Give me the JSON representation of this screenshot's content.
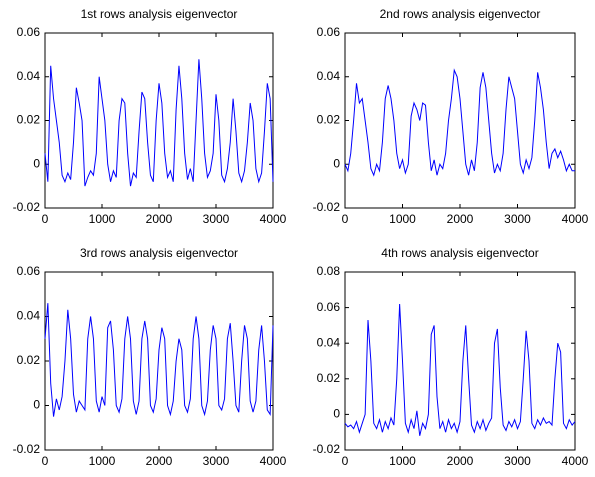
{
  "chart_data": [
    {
      "type": "line",
      "title": "1st rows analysis eigenvector",
      "color": "#0000ff",
      "x": [
        0,
        50,
        100,
        150,
        200,
        250,
        300,
        350,
        400,
        450,
        500,
        550,
        600,
        650,
        700,
        750,
        800,
        850,
        900,
        950,
        1000,
        1050,
        1100,
        1150,
        1200,
        1250,
        1300,
        1350,
        1400,
        1450,
        1500,
        1550,
        1600,
        1650,
        1700,
        1750,
        1800,
        1850,
        1900,
        1950,
        2000,
        2050,
        2100,
        2150,
        2200,
        2250,
        2300,
        2350,
        2400,
        2450,
        2500,
        2550,
        2600,
        2650,
        2700,
        2750,
        2800,
        2850,
        2900,
        2950,
        3000,
        3050,
        3100,
        3150,
        3200,
        3250,
        3300,
        3350,
        3400,
        3450,
        3500,
        3550,
        3600,
        3650,
        3700,
        3750,
        3800,
        3850,
        3900,
        3950,
        4000
      ],
      "values": [
        0.005,
        -0.008,
        0.045,
        0.03,
        0.02,
        0.01,
        -0.005,
        -0.008,
        -0.004,
        -0.007,
        0.01,
        0.035,
        0.028,
        0.02,
        -0.01,
        -0.006,
        -0.003,
        -0.005,
        0.005,
        0.04,
        0.03,
        0.02,
        0.0,
        -0.008,
        -0.003,
        -0.006,
        0.02,
        0.03,
        0.028,
        0.005,
        -0.01,
        -0.004,
        -0.006,
        0.015,
        0.033,
        0.03,
        0.01,
        -0.005,
        -0.008,
        0.02,
        0.037,
        0.028,
        0.005,
        -0.006,
        -0.003,
        -0.008,
        0.025,
        0.045,
        0.03,
        0.005,
        -0.007,
        -0.002,
        -0.008,
        0.02,
        0.048,
        0.03,
        0.005,
        -0.006,
        -0.003,
        0.005,
        0.032,
        0.02,
        -0.005,
        -0.008,
        -0.002,
        0.01,
        0.03,
        0.015,
        -0.004,
        -0.008,
        -0.003,
        0.01,
        0.028,
        0.02,
        -0.002,
        -0.008,
        -0.004,
        0.015,
        0.037,
        0.03,
        -0.008
      ],
      "xlim": [
        0,
        4000
      ],
      "xticks": [
        0,
        1000,
        2000,
        3000,
        4000
      ],
      "ylim": [
        -0.02,
        0.06
      ],
      "yticks": [
        -0.02,
        0,
        0.02,
        0.04,
        0.06
      ]
    },
    {
      "type": "line",
      "title": "2nd rows analysis eigenvector",
      "color": "#0000ff",
      "x": [
        0,
        50,
        100,
        150,
        200,
        250,
        300,
        350,
        400,
        450,
        500,
        550,
        600,
        650,
        700,
        750,
        800,
        850,
        900,
        950,
        1000,
        1050,
        1100,
        1150,
        1200,
        1250,
        1300,
        1350,
        1400,
        1450,
        1500,
        1550,
        1600,
        1650,
        1700,
        1750,
        1800,
        1850,
        1900,
        1950,
        2000,
        2050,
        2100,
        2150,
        2200,
        2250,
        2300,
        2350,
        2400,
        2450,
        2500,
        2550,
        2600,
        2650,
        2700,
        2750,
        2800,
        2850,
        2900,
        2950,
        3000,
        3050,
        3100,
        3150,
        3200,
        3250,
        3300,
        3350,
        3400,
        3450,
        3500,
        3550,
        3600,
        3650,
        3700,
        3750,
        3800,
        3850,
        3900,
        3950,
        4000
      ],
      "values": [
        0.0,
        -0.003,
        0.005,
        0.02,
        0.037,
        0.028,
        0.03,
        0.02,
        0.01,
        -0.002,
        -0.005,
        0.0,
        -0.003,
        0.01,
        0.03,
        0.036,
        0.03,
        0.02,
        0.005,
        -0.002,
        0.002,
        -0.004,
        0.0,
        0.022,
        0.028,
        0.025,
        0.02,
        0.028,
        0.027,
        0.01,
        -0.003,
        0.002,
        -0.005,
        0.0,
        -0.002,
        0.005,
        0.02,
        0.03,
        0.043,
        0.04,
        0.03,
        0.015,
        0.0,
        -0.005,
        0.002,
        -0.003,
        0.01,
        0.035,
        0.042,
        0.035,
        0.02,
        0.005,
        -0.004,
        0.0,
        -0.003,
        0.005,
        0.025,
        0.04,
        0.035,
        0.03,
        0.015,
        0.0,
        -0.004,
        0.002,
        -0.002,
        0.003,
        0.02,
        0.042,
        0.035,
        0.025,
        0.01,
        -0.002,
        0.005,
        0.007,
        0.003,
        0.006,
        0.002,
        -0.003,
        0.0,
        -0.003,
        -0.003
      ],
      "xlim": [
        0,
        4000
      ],
      "xticks": [
        0,
        1000,
        2000,
        3000,
        4000
      ],
      "ylim": [
        -0.02,
        0.06
      ],
      "yticks": [
        -0.02,
        0,
        0.02,
        0.04,
        0.06
      ]
    },
    {
      "type": "line",
      "title": "3rd rows analysis eigenvector",
      "color": "#0000ff",
      "x": [
        0,
        50,
        100,
        150,
        200,
        250,
        300,
        350,
        400,
        450,
        500,
        550,
        600,
        650,
        700,
        750,
        800,
        850,
        900,
        950,
        1000,
        1050,
        1100,
        1150,
        1200,
        1250,
        1300,
        1350,
        1400,
        1450,
        1500,
        1550,
        1600,
        1650,
        1700,
        1750,
        1800,
        1850,
        1900,
        1950,
        2000,
        2050,
        2100,
        2150,
        2200,
        2250,
        2300,
        2350,
        2400,
        2450,
        2500,
        2550,
        2600,
        2650,
        2700,
        2750,
        2800,
        2850,
        2900,
        2950,
        3000,
        3050,
        3100,
        3150,
        3200,
        3250,
        3300,
        3350,
        3400,
        3450,
        3500,
        3550,
        3600,
        3650,
        3700,
        3750,
        3800,
        3850,
        3900,
        3950,
        4000
      ],
      "values": [
        0.03,
        0.046,
        0.01,
        -0.005,
        0.003,
        -0.002,
        0.004,
        0.02,
        0.043,
        0.03,
        0.005,
        -0.003,
        0.002,
        0.0,
        -0.002,
        0.03,
        0.04,
        0.03,
        0.002,
        -0.003,
        0.004,
        0.0,
        0.035,
        0.038,
        0.025,
        0.0,
        -0.003,
        0.003,
        0.03,
        0.04,
        0.03,
        0.002,
        -0.004,
        0.002,
        0.03,
        0.038,
        0.03,
        0.0,
        -0.003,
        0.003,
        0.025,
        0.035,
        0.03,
        0.0,
        -0.004,
        0.002,
        0.02,
        0.03,
        0.025,
        0.0,
        -0.003,
        0.003,
        0.03,
        0.04,
        0.03,
        0.0,
        -0.004,
        0.002,
        0.025,
        0.036,
        0.03,
        0.0,
        -0.002,
        0.003,
        0.03,
        0.037,
        0.02,
        0.0,
        -0.003,
        0.02,
        0.036,
        0.03,
        0.002,
        -0.003,
        0.002,
        0.025,
        0.036,
        0.02,
        -0.002,
        -0.004,
        0.036
      ],
      "xlim": [
        0,
        4000
      ],
      "xticks": [
        0,
        1000,
        2000,
        3000,
        4000
      ],
      "ylim": [
        -0.02,
        0.06
      ],
      "yticks": [
        -0.02,
        0,
        0.02,
        0.04,
        0.06
      ]
    },
    {
      "type": "line",
      "title": "4th rows analysis eigenvector",
      "color": "#0000ff",
      "x": [
        0,
        50,
        100,
        150,
        200,
        250,
        300,
        350,
        400,
        450,
        500,
        550,
        600,
        650,
        700,
        750,
        800,
        850,
        900,
        950,
        1000,
        1050,
        1100,
        1150,
        1200,
        1250,
        1300,
        1350,
        1400,
        1450,
        1500,
        1550,
        1600,
        1650,
        1700,
        1750,
        1800,
        1850,
        1900,
        1950,
        2000,
        2050,
        2100,
        2150,
        2200,
        2250,
        2300,
        2350,
        2400,
        2450,
        2500,
        2550,
        2600,
        2650,
        2700,
        2750,
        2800,
        2850,
        2900,
        2950,
        3000,
        3050,
        3100,
        3150,
        3200,
        3250,
        3300,
        3350,
        3400,
        3450,
        3500,
        3550,
        3600,
        3650,
        3700,
        3750,
        3800,
        3850,
        3900,
        3950,
        4000
      ],
      "values": [
        -0.005,
        -0.007,
        -0.006,
        -0.008,
        -0.004,
        -0.01,
        -0.005,
        0.0,
        0.053,
        0.03,
        -0.005,
        -0.008,
        -0.003,
        -0.01,
        -0.004,
        -0.008,
        -0.002,
        -0.006,
        0.02,
        0.062,
        0.03,
        -0.005,
        -0.01,
        -0.003,
        -0.008,
        0.002,
        -0.012,
        -0.005,
        -0.008,
        0.0,
        0.045,
        0.05,
        0.01,
        -0.008,
        -0.004,
        -0.01,
        -0.003,
        -0.008,
        -0.005,
        -0.01,
        -0.004,
        0.03,
        0.05,
        0.02,
        -0.006,
        -0.01,
        -0.004,
        -0.008,
        -0.003,
        -0.009,
        -0.005,
        -0.002,
        0.04,
        0.048,
        0.015,
        -0.006,
        -0.009,
        -0.004,
        -0.007,
        -0.003,
        -0.008,
        -0.004,
        0.02,
        0.047,
        0.03,
        -0.005,
        -0.008,
        -0.003,
        -0.006,
        -0.002,
        -0.005,
        -0.004,
        -0.006,
        0.02,
        0.04,
        0.035,
        -0.005,
        -0.008,
        -0.003,
        -0.006,
        -0.004
      ],
      "xlim": [
        0,
        4000
      ],
      "xticks": [
        0,
        1000,
        2000,
        3000,
        4000
      ],
      "ylim": [
        -0.02,
        0.08
      ],
      "yticks": [
        -0.02,
        0,
        0.02,
        0.04,
        0.06,
        0.08
      ]
    }
  ]
}
